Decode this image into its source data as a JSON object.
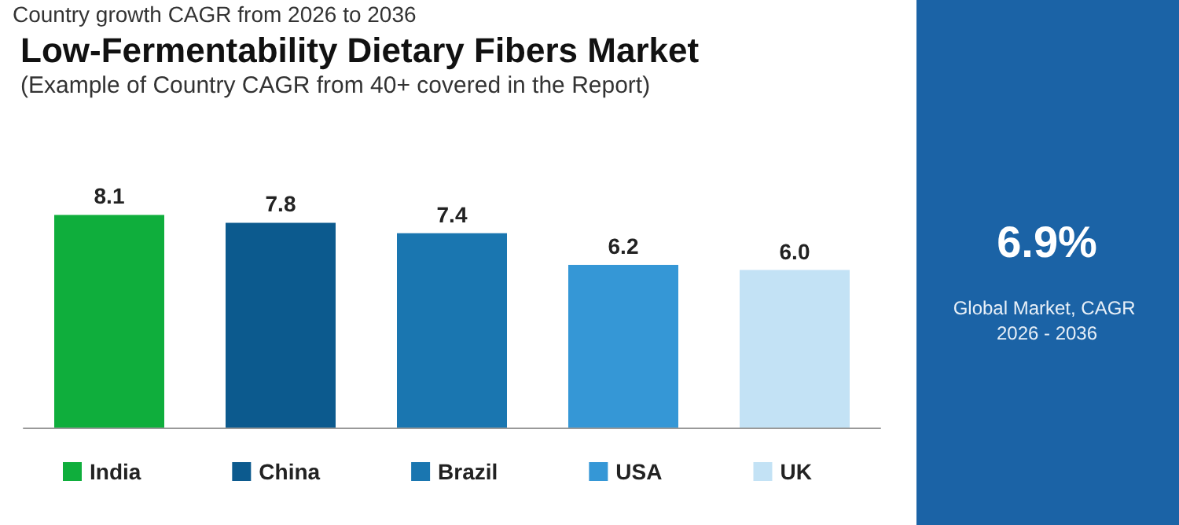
{
  "chart_data": {
    "type": "bar",
    "title": "Low-Fermentability Dietary Fibers Market",
    "subtitle": "(Example of Country CAGR from 40+ covered in the Report)",
    "annotations": [
      "Country growth CAGR from 2026 to 2036",
      "6.9%",
      "Global Market, CAGR 2026 - 2036"
    ],
    "categories": [
      null,
      null,
      null,
      null,
      null
    ],
    "series": [
      {
        "name": "India",
        "color": "#0fae3c",
        "values": [
          8.1,
          null,
          null,
          null,
          null
        ],
        "value_labels": [
          "8.1",
          null,
          null,
          null,
          null
        ]
      },
      {
        "name": "China",
        "color": "#0c5a8e",
        "values": [
          null,
          7.8,
          null,
          null,
          null
        ],
        "value_labels": [
          null,
          "7.8",
          null,
          null,
          null
        ]
      },
      {
        "name": "Brazil",
        "color": "#1a76b0",
        "values": [
          null,
          null,
          7.4,
          null,
          null
        ],
        "value_labels": [
          null,
          null,
          "7.4",
          null,
          null
        ]
      },
      {
        "name": "USA",
        "color": "#3597d6",
        "values": [
          null,
          null,
          null,
          6.2,
          null
        ],
        "value_labels": [
          null,
          null,
          null,
          "6.2",
          null
        ]
      },
      {
        "name": "UK",
        "color": "#c3e2f5",
        "values": [
          null,
          null,
          null,
          null,
          6.0
        ],
        "value_labels": [
          null,
          null,
          null,
          null,
          "6.0"
        ]
      }
    ],
    "stacked": true,
    "legend": "bottom"
  }
}
